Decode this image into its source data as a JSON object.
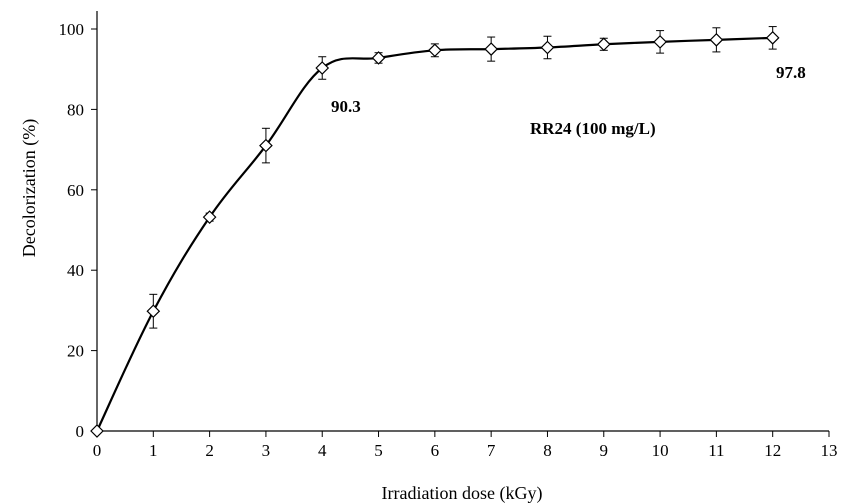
{
  "chart_data": {
    "type": "line",
    "title": "",
    "xlabel": "Irradiation dose (kGy)",
    "ylabel": "Decolorization (%)",
    "xlim": [
      0,
      13
    ],
    "ylim": [
      0,
      100
    ],
    "xticks": [
      0,
      1,
      2,
      3,
      4,
      5,
      6,
      7,
      8,
      9,
      10,
      11,
      12,
      13
    ],
    "yticks": [
      0,
      20,
      40,
      60,
      80,
      100
    ],
    "grid": false,
    "legend": "none",
    "series": [
      {
        "marker": "diamond",
        "marker_fill": "#ffffff",
        "line_color": "#000000",
        "x": [
          0,
          1,
          2,
          3,
          4,
          5,
          6,
          7,
          8,
          9,
          10,
          11,
          12
        ],
        "y": [
          0,
          29.8,
          53.2,
          71.0,
          90.3,
          92.8,
          94.7,
          95.0,
          95.4,
          96.2,
          96.8,
          97.3,
          97.8
        ],
        "error": [
          0,
          4.2,
          1.0,
          4.3,
          2.8,
          1.3,
          1.6,
          3.0,
          2.8,
          1.5,
          2.8,
          3.0,
          2.8
        ]
      }
    ],
    "annotations": [
      {
        "text": "90.3",
        "x": 4,
        "y": 90.3
      },
      {
        "text": "97.8",
        "x": 12,
        "y": 97.8
      },
      {
        "text": "RR24 (100 mg/L)",
        "x": 7,
        "y": 80
      }
    ]
  }
}
